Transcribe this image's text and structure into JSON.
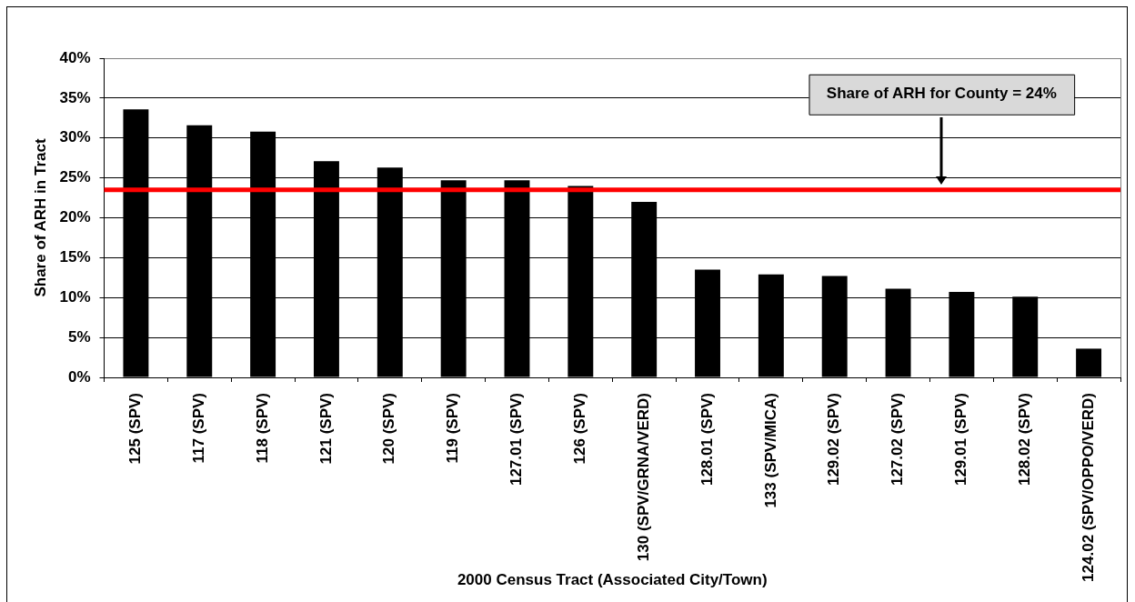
{
  "chart_data": {
    "type": "bar",
    "xlabel": "2000 Census Tract (Associated City/Town)",
    "ylabel": "Share of ARH in Tract",
    "categories": [
      "125 (SPV)",
      "117 (SPV)",
      "118 (SPV)",
      "121 (SPV)",
      "120 (SPV)",
      "119 (SPV)",
      "127.01 (SPV)",
      "126 (SPV)",
      "130 (SPV/GRNA/VERD)",
      "128.01 (SPV)",
      "133 (SPV/MICA)",
      "129.02 (SPV)",
      "127.02 (SPV)",
      "129.01 (SPV)",
      "128.02 (SPV)",
      "124.02 (SPV/OPPO/VERD)"
    ],
    "values": [
      33.6,
      31.6,
      30.8,
      27.1,
      26.3,
      24.7,
      24.7,
      24.0,
      22.0,
      13.5,
      12.9,
      12.7,
      11.1,
      10.7,
      10.1,
      3.6
    ],
    "color": "#000000",
    "ylim": [
      0,
      40
    ],
    "yticks": [
      {
        "value": 0,
        "label": "0%"
      },
      {
        "value": 5,
        "label": "5%"
      },
      {
        "value": 10,
        "label": "10%"
      },
      {
        "value": 15,
        "label": "15%"
      },
      {
        "value": 20,
        "label": "20%"
      },
      {
        "value": 25,
        "label": "25%"
      },
      {
        "value": 30,
        "label": "30%"
      },
      {
        "value": 35,
        "label": "35%"
      },
      {
        "value": 40,
        "label": "40%"
      }
    ],
    "grid": "y",
    "ref_lines": [
      {
        "axis": "y",
        "value": 23.5,
        "color": "#ff0000"
      }
    ],
    "annotations": [
      "Share of ARH for County = 24%"
    ]
  }
}
